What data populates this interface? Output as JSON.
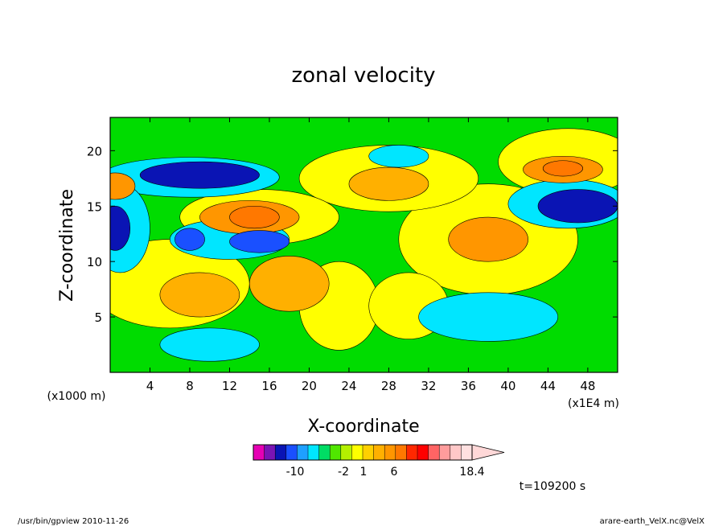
{
  "chart_data": {
    "type": "heatmap",
    "title": "zonal velocity",
    "xlabel": "X-coordinate",
    "x_units_left": "(x1000 m)",
    "x_units_right": "(x1E4 m)",
    "ylabel": "Z-coordinate",
    "xlim": [
      0,
      51
    ],
    "ylim": [
      0,
      23
    ],
    "xticks": [
      4,
      8,
      12,
      16,
      20,
      24,
      28,
      32,
      36,
      40,
      44,
      48
    ],
    "yticks": [
      5,
      10,
      15,
      20
    ],
    "grid": false,
    "colorbar": {
      "orientation": "horizontal",
      "placement": "bottom",
      "levels": [
        -14,
        -12,
        -10,
        -8,
        -6,
        -4,
        -3,
        -2,
        -1,
        0,
        1,
        2,
        3,
        4,
        6,
        8,
        10,
        12,
        14,
        16,
        18.4
      ],
      "labels": [
        "-10",
        "-2",
        "1",
        "6",
        "18.4"
      ],
      "colors": [
        "#e600b4",
        "#7a14b4",
        "#0a14b4",
        "#1a50ff",
        "#1ea0ff",
        "#00e6ff",
        "#00dc64",
        "#50e600",
        "#b4f000",
        "#ffff00",
        "#ffd000",
        "#ffb000",
        "#ff9600",
        "#ff7800",
        "#ff2800",
        "#ff0000",
        "#ff6464",
        "#ff9c9c",
        "#ffc8c8",
        "#ffe0e0"
      ],
      "triangle_end": "right"
    },
    "fields": [
      {
        "name": "jet-top-left-negative",
        "x": 8,
        "y": 17.5,
        "peak": -10
      },
      {
        "name": "jet-top-right-negative",
        "x": 47,
        "y": 15.5,
        "peak": -10
      },
      {
        "name": "jet-top-right-positive",
        "x": 46,
        "y": 18.3,
        "peak": 8
      },
      {
        "name": "left-edge-negative",
        "x": 0.5,
        "y": 13,
        "peak": -10
      },
      {
        "name": "band-positive",
        "x": 14,
        "y": 14,
        "peak": 8
      },
      {
        "name": "mid-negative",
        "x": 13,
        "y": 12,
        "peak": -8
      },
      {
        "name": "center-right-positive",
        "x": 38,
        "y": 12,
        "peak": 6
      },
      {
        "name": "lower-left-positive",
        "x": 9,
        "y": 7,
        "peak": 5
      },
      {
        "name": "lower-right-negative",
        "x": 40,
        "y": 5,
        "peak": -5
      },
      {
        "name": "upper-mid-positive",
        "x": 27,
        "y": 17,
        "peak": 6
      }
    ]
  },
  "annotations": {
    "time": "t=109200 s",
    "footer_left": "/usr/bin/gpview  2010-11-26",
    "footer_right": "arare-earth_VelX.nc@VelX"
  }
}
